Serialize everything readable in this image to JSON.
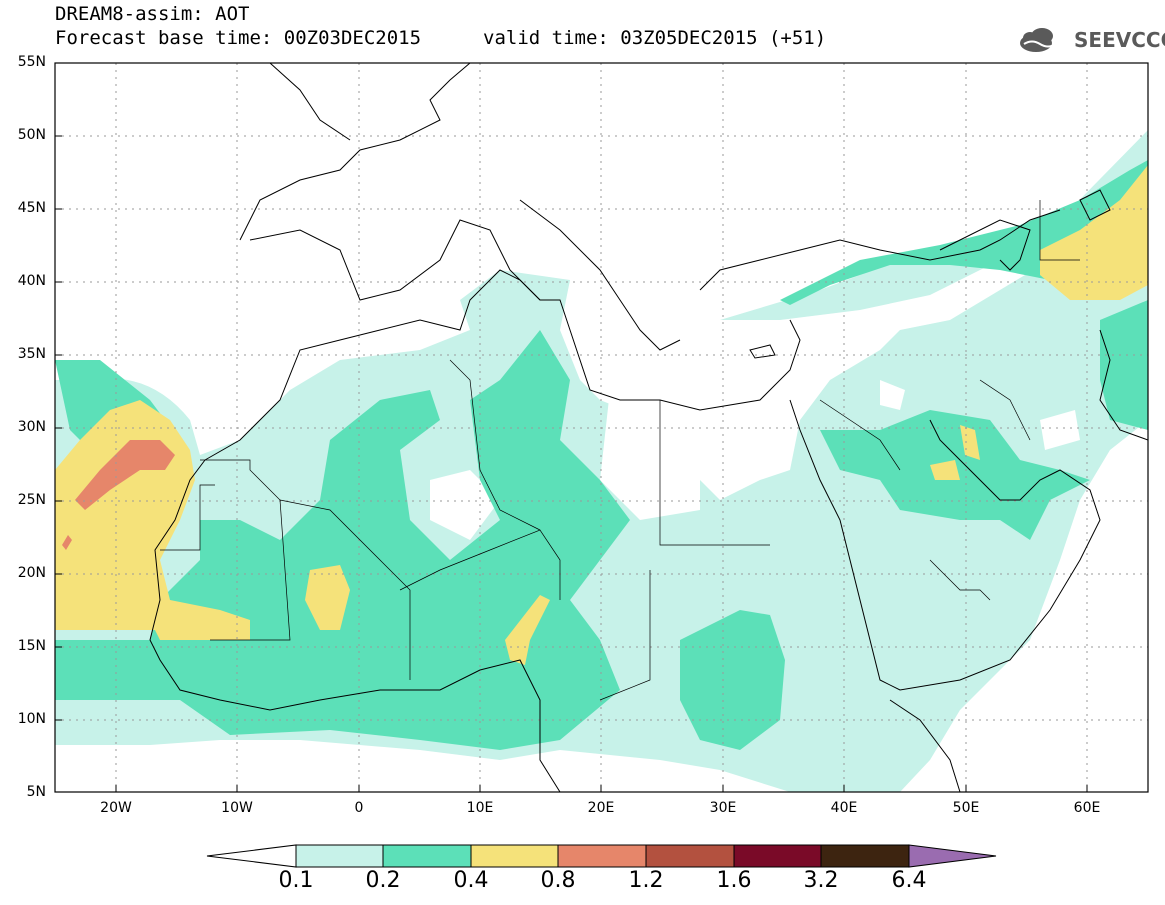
{
  "header": {
    "title": "DREAM8-assim: AOT",
    "base_time": "Forecast base time: 00Z03DEC2015",
    "valid_time": "valid time: 03Z05DEC2015 (+51)",
    "logo_text": "SEEVCCC"
  },
  "map": {
    "lat_labels": [
      "55N",
      "50N",
      "45N",
      "40N",
      "35N",
      "30N",
      "25N",
      "20N",
      "15N",
      "10N",
      "5N"
    ],
    "lon_labels": [
      "20W",
      "10W",
      "0",
      "10E",
      "20E",
      "30E",
      "40E",
      "50E",
      "60E"
    ]
  },
  "colorbar": {
    "labels": [
      "0.1",
      "0.2",
      "0.4",
      "0.8",
      "1.2",
      "1.6",
      "3.2",
      "6.4"
    ],
    "colors": [
      "#c7f2e9",
      "#5ce0b8",
      "#f5e27a",
      "#e6866a",
      "#b3513f",
      "#7a0a28",
      "#3d2410",
      "#9a6cb0"
    ]
  },
  "colors": {
    "level1": "#c7f2e9",
    "level2": "#5ce0b8",
    "level3": "#f5e27a",
    "level4": "#e6866a",
    "level5": "#b3513f",
    "border": "#000000",
    "grid": "#9a9a9a"
  }
}
